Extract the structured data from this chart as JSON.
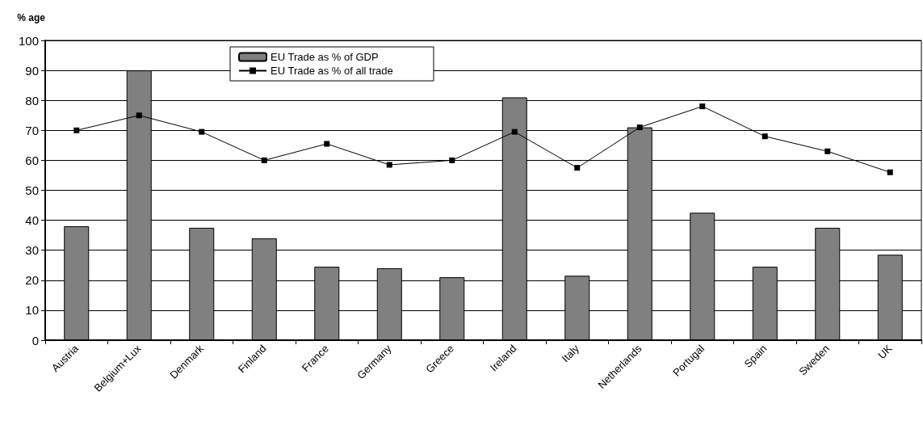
{
  "chart_data": {
    "type": "bar",
    "ylabel": "% age",
    "categories": [
      "Austria",
      "Belgium+Lux",
      "Denmark",
      "Finland",
      "France",
      "Germany",
      "Greece",
      "Ireland",
      "Italy",
      "Netherlands",
      "Portugal",
      "Spain",
      "Sweden",
      "UK"
    ],
    "series": [
      {
        "name": "EU Trade as % of GDP",
        "color": "#808080",
        "values": [
          38,
          90,
          37.5,
          34,
          24.5,
          24,
          21,
          81,
          21.5,
          71,
          42.5,
          24.5,
          37.5,
          28.5
        ]
      },
      {
        "name": "EU Trade as % of all trade",
        "type": "line",
        "color": "#000000",
        "marker": "square",
        "values": [
          70,
          75,
          69.5,
          60,
          65.5,
          58.5,
          60,
          69.5,
          57.5,
          71,
          78,
          68,
          63,
          56
        ]
      }
    ],
    "ylim": [
      0,
      100
    ],
    "yticks": [
      0,
      10,
      20,
      30,
      40,
      50,
      60,
      70,
      80,
      90,
      100
    ],
    "grid": "y",
    "legend": "top left"
  }
}
